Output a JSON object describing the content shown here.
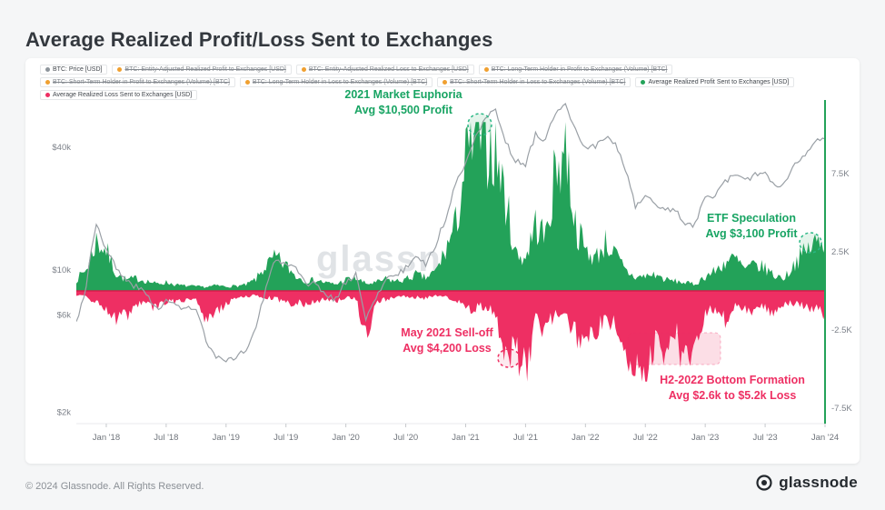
{
  "page": {
    "title": "Average Realized Profit/Loss Sent to Exchanges",
    "footer_left": "© 2024 Glassnode. All Rights Reserved.",
    "footer_brand": "glassnode",
    "watermark": "glassnode"
  },
  "colors": {
    "profit_green": "#23a259",
    "loss_pink": "#ee2f63",
    "price_gray": "#9aa0a6",
    "legend_orange": "#f0a030",
    "annotation_green": "#18a463",
    "watermark_gray": "#e0e3e6"
  },
  "legend": [
    {
      "label": "BTC: Price [USD]",
      "color": "#8e959c",
      "disabled": false
    },
    {
      "label": "BTC: Entity-Adjusted Realized Profit to Exchanges [USD]",
      "color": "#f0a030",
      "disabled": true
    },
    {
      "label": "BTC: Entity-Adjusted Realized Loss to Exchanges [USD]",
      "color": "#f0a030",
      "disabled": true
    },
    {
      "label": "BTC: Long-Term Holder in Profit to Exchanges (Volume) [BTC]",
      "color": "#f0a030",
      "disabled": true
    },
    {
      "label": "BTC: Short-Term Holder in Profit to Exchanges (Volume) [BTC]",
      "color": "#f0a030",
      "disabled": true
    },
    {
      "label": "BTC: Long-Term Holder in Loss to Exchanges (Volume) [BTC]",
      "color": "#f0a030",
      "disabled": true
    },
    {
      "label": "BTC: Short-Term Holder in Loss to Exchanges (Volume) [BTC]",
      "color": "#f0a030",
      "disabled": true
    },
    {
      "label": "Average Realized Profit Sent to Exchanges [USD]",
      "color": "#23a259",
      "disabled": false
    },
    {
      "label": "Average Realized Loss Sent to Exchanges [USD]",
      "color": "#ee2f63",
      "disabled": false
    }
  ],
  "annotations": [
    {
      "id": "2021-market-euphoria",
      "line1": "2021 Market Euphoria",
      "line2": "Avg $10,500 Profit",
      "color": "green"
    },
    {
      "id": "etf-speculation",
      "line1": "ETF Speculation",
      "line2": "Avg $3,100 Profit",
      "color": "green"
    },
    {
      "id": "may-2021-selloff",
      "line1": "May 2021 Sell-off",
      "line2": "Avg $4,200 Loss",
      "color": "pink"
    },
    {
      "id": "h2-2022-bottom",
      "line1": "H2-2022 Bottom Formation",
      "line2": "Avg $2.6k to $5.2k Loss",
      "color": "pink"
    }
  ],
  "chart_data": {
    "type": "area",
    "title": "Average Realized Profit/Loss Sent to Exchanges",
    "x_start": "Oct 2017",
    "x_interval": "monthly",
    "x_tick_labels": [
      "Jan '18",
      "Jul '18",
      "Jan '19",
      "Jul '19",
      "Jan '20",
      "Jul '20",
      "Jan '21",
      "Jul '21",
      "Jan '22",
      "Jul '22",
      "Jan '23",
      "Jul '23",
      "Jan '24"
    ],
    "x_tick_indices": [
      3,
      9,
      15,
      21,
      27,
      33,
      39,
      45,
      51,
      57,
      63,
      69,
      75
    ],
    "left_axis": {
      "scale": "log",
      "series": "BTC: Price [USD]",
      "tick_labels": [
        "$40k",
        "$10k",
        "$6k",
        "$2k"
      ],
      "tick_values": [
        40000,
        10000,
        6000,
        2000
      ]
    },
    "right_axis": {
      "scale": "linear",
      "tick_labels": [
        "7.5K",
        "2.5K",
        "-2.5K",
        "-7.5K"
      ],
      "tick_values": [
        7500,
        2500,
        -2500,
        -7500
      ]
    },
    "grid": false,
    "legend_position": "top",
    "series": [
      {
        "name": "BTC: Price [USD]",
        "type": "line",
        "axis": "left",
        "color": "#9aa0a6",
        "values": [
          5500,
          8200,
          17000,
          12500,
          10200,
          8800,
          8300,
          7600,
          6500,
          7000,
          6700,
          6500,
          6400,
          4400,
          3700,
          3500,
          3800,
          4000,
          5200,
          8000,
          11500,
          10500,
          10000,
          8400,
          8600,
          7500,
          7200,
          8800,
          9400,
          5800,
          7100,
          9200,
          9300,
          10200,
          11700,
          10800,
          13000,
          18000,
          26000,
          34000,
          46000,
          56000,
          60000,
          43000,
          34000,
          33000,
          46000,
          44000,
          58000,
          64000,
          48000,
          40000,
          40500,
          45000,
          41000,
          31000,
          20500,
          22500,
          21500,
          19500,
          19800,
          16500,
          16800,
          22500,
          23500,
          27500,
          29000,
          27000,
          30000,
          29500,
          26000,
          26800,
          33500,
          37500,
          43000,
          44000
        ]
      },
      {
        "name": "Average Realized Profit Sent to Exchanges [USD]",
        "type": "area",
        "axis": "right",
        "color": "#23a259",
        "values": [
          700,
          1400,
          3200,
          2600,
          1100,
          700,
          800,
          650,
          450,
          550,
          380,
          320,
          280,
          250,
          350,
          280,
          320,
          380,
          750,
          1600,
          2100,
          1600,
          950,
          650,
          700,
          520,
          420,
          720,
          820,
          450,
          520,
          750,
          620,
          720,
          1050,
          820,
          1250,
          2600,
          4200,
          8200,
          10500,
          9600,
          9000,
          5800,
          2400,
          2100,
          4300,
          3400,
          7600,
          9500,
          4200,
          2600,
          2100,
          3100,
          2300,
          1300,
          850,
          950,
          1050,
          720,
          620,
          520,
          420,
          950,
          1250,
          1850,
          2050,
          1350,
          1650,
          1450,
          950,
          850,
          1850,
          2450,
          3100,
          2900
        ]
      },
      {
        "name": "Average Realized Loss Sent to Exchanges [USD]",
        "type": "area",
        "axis": "right",
        "color": "#ee2f63",
        "values": [
          -300,
          -450,
          -700,
          -1300,
          -1900,
          -1600,
          -950,
          -850,
          -1100,
          -650,
          -750,
          -520,
          -430,
          -1900,
          -1500,
          -750,
          -520,
          -330,
          -310,
          -420,
          -520,
          -820,
          -720,
          -920,
          -620,
          -520,
          -630,
          -420,
          -520,
          -2900,
          -820,
          -520,
          -420,
          -320,
          -420,
          -520,
          -320,
          -420,
          -520,
          -1250,
          -1050,
          -950,
          -1550,
          -4200,
          -3600,
          -5500,
          -1550,
          -2600,
          -1250,
          -1850,
          -2900,
          -3100,
          -2600,
          -1550,
          -2300,
          -4600,
          -5600,
          -5200,
          -3600,
          -3900,
          -2600,
          -5000,
          -3300,
          -1550,
          -1050,
          -1850,
          -950,
          -1150,
          -1250,
          -950,
          -1650,
          -850,
          -750,
          -950,
          -1150,
          -1450
        ]
      }
    ]
  }
}
